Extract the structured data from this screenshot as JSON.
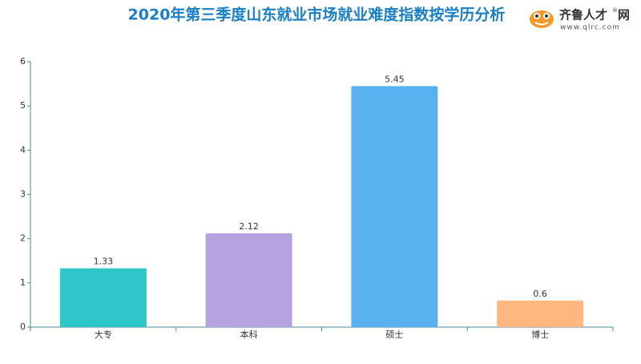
{
  "chart_data": {
    "type": "bar",
    "title": "2020年第三季度山东就业市场就业难度指数按学历分析",
    "logo": {
      "name": "齐鲁人才",
      "mark": "®",
      "suffix": "网",
      "url": "www.qlrc.com"
    },
    "categories": [
      "大专",
      "本科",
      "硕士",
      "博士"
    ],
    "values": [
      1.33,
      2.12,
      5.45,
      0.6
    ],
    "colors": [
      "#2ec7c9",
      "#b6a2de",
      "#5ab1ef",
      "#ffb980"
    ],
    "ylim": [
      0,
      6
    ],
    "yticks": [
      0,
      1,
      2,
      3,
      4,
      5,
      6
    ],
    "grid": false
  }
}
